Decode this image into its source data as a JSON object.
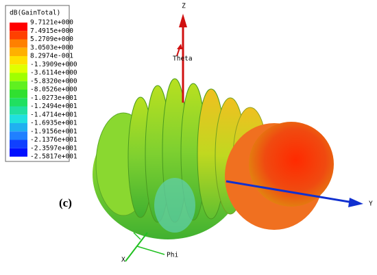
{
  "legend": {
    "title": "dB(GainTotal)",
    "labels": [
      "9.7121e+000",
      "7.4915e+000",
      "5.2709e+000",
      "3.0503e+000",
      "8.2974e-001",
      "-1.3909e+000",
      "-3.6114e+000",
      "-5.8320e+000",
      "-8.0526e+000",
      "-1.0273e+001",
      "-1.2494e+001",
      "-1.4714e+001",
      "-1.6935e+001",
      "-1.9156e+001",
      "-2.1376e+001",
      "-2.3597e+001",
      "-2.5817e+001"
    ]
  },
  "axes": {
    "z": "Z",
    "theta": "Theta",
    "y": "Y",
    "x": "X",
    "phi": "Phi"
  },
  "panel_label": "(c)"
}
